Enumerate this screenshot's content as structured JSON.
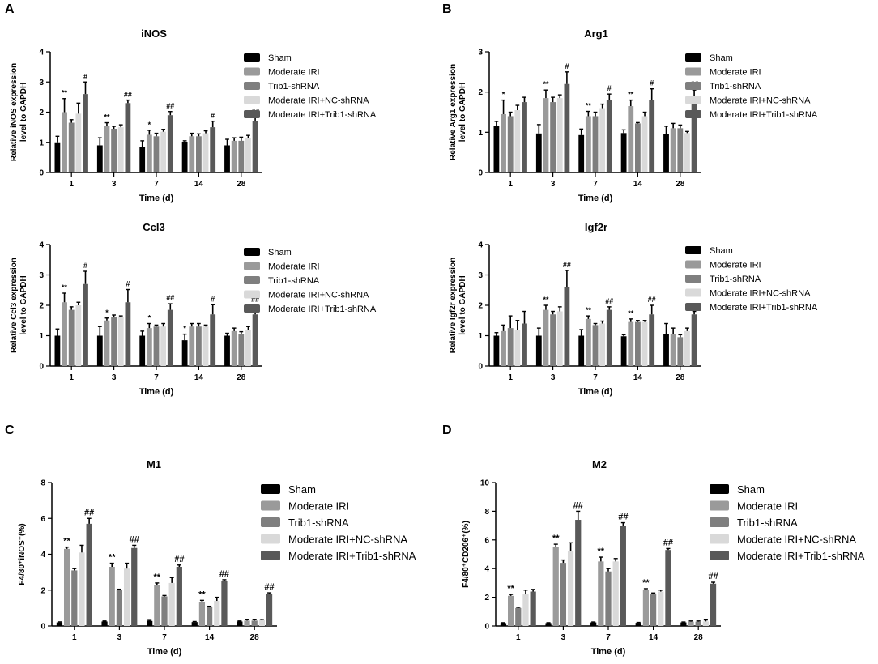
{
  "colors": {
    "sham": "#000000",
    "moderate_iri": "#9a9a9a",
    "trib1_shrna": "#7f7f7f",
    "moderate_iri_nc": "#d9d9d9",
    "moderate_iri_trib1": "#595959",
    "error": "#000000"
  },
  "legend_labels": [
    "Sham",
    "Moderate IRI",
    "Trib1-shRNA",
    "Moderate IRI+NC-shRNA",
    "Moderate IRI+Trib1-shRNA"
  ],
  "chart_data": [
    {
      "panel_label": "A",
      "type": "bar",
      "title": "iNOS",
      "ylabel": "Relative iNOS expression level to GAPDH",
      "xlabel": "Time (d)",
      "ylim": [
        0,
        4
      ],
      "yticks": [
        0,
        1,
        2,
        3,
        4
      ],
      "categories": [
        "1",
        "3",
        "7",
        "14",
        "28"
      ],
      "series": [
        {
          "name": "Sham",
          "values": [
            1.0,
            0.9,
            0.85,
            1.02,
            0.9
          ],
          "errors": [
            0.2,
            0.25,
            0.2,
            0.03,
            0.2
          ]
        },
        {
          "name": "Moderate IRI",
          "values": [
            2.0,
            1.55,
            1.25,
            1.2,
            1.05
          ],
          "errors": [
            0.45,
            0.1,
            0.15,
            0.1,
            0.1
          ]
        },
        {
          "name": "Trib1-shRNA",
          "values": [
            1.65,
            1.45,
            1.2,
            1.2,
            1.05
          ],
          "errors": [
            0.1,
            0.08,
            0.1,
            0.08,
            0.12
          ]
        },
        {
          "name": "Moderate IRI+NC-shRNA",
          "values": [
            1.95,
            1.5,
            1.35,
            1.3,
            1.15
          ],
          "errors": [
            0.35,
            0.08,
            0.08,
            0.08,
            0.08
          ]
        },
        {
          "name": "Moderate IRI+Trib1-shRNA",
          "values": [
            2.6,
            2.3,
            1.9,
            1.5,
            1.7
          ],
          "errors": [
            0.4,
            0.1,
            0.12,
            0.2,
            0.12
          ]
        }
      ],
      "annotations": [
        {
          "category": "1",
          "series": 1,
          "text": "**"
        },
        {
          "category": "1",
          "series": 4,
          "text": "#"
        },
        {
          "category": "3",
          "series": 1,
          "text": "**"
        },
        {
          "category": "3",
          "series": 4,
          "text": "##"
        },
        {
          "category": "7",
          "series": 1,
          "text": "*"
        },
        {
          "category": "7",
          "series": 4,
          "text": "##"
        },
        {
          "category": "14",
          "series": 4,
          "text": "#"
        },
        {
          "category": "28",
          "series": 4,
          "text": "##"
        }
      ],
      "legend_position": "right"
    },
    {
      "panel_label": "B",
      "type": "bar",
      "title": "Arg1",
      "ylabel": "Relative Arg1 expression level to GAPDH",
      "xlabel": "Time (d)",
      "ylim": [
        0,
        3
      ],
      "yticks": [
        0,
        1,
        2,
        3
      ],
      "categories": [
        "1",
        "3",
        "7",
        "14",
        "28"
      ],
      "series": [
        {
          "name": "Sham",
          "values": [
            1.15,
            0.97,
            0.93,
            0.98,
            0.95
          ],
          "errors": [
            0.12,
            0.22,
            0.15,
            0.08,
            0.2
          ]
        },
        {
          "name": "Moderate IRI",
          "values": [
            1.45,
            1.85,
            1.4,
            1.65,
            1.1
          ],
          "errors": [
            0.35,
            0.2,
            0.12,
            0.15,
            0.12
          ]
        },
        {
          "name": "Trib1-shRNA",
          "values": [
            1.4,
            1.75,
            1.4,
            1.22,
            1.1
          ],
          "errors": [
            0.1,
            0.12,
            0.1,
            0.02,
            0.08
          ]
        },
        {
          "name": "Moderate IRI+NC-shRNA",
          "values": [
            1.55,
            1.85,
            1.6,
            1.4,
            0.98
          ],
          "errors": [
            0.12,
            0.08,
            0.1,
            0.1,
            0.04
          ]
        },
        {
          "name": "Moderate IRI+Trib1-shRNA",
          "values": [
            1.75,
            2.2,
            1.8,
            1.8,
            1.7
          ],
          "errors": [
            0.12,
            0.3,
            0.15,
            0.28,
            0.35
          ]
        }
      ],
      "annotations": [
        {
          "category": "1",
          "series": 1,
          "text": "*"
        },
        {
          "category": "3",
          "series": 1,
          "text": "**"
        },
        {
          "category": "3",
          "series": 4,
          "text": "#"
        },
        {
          "category": "7",
          "series": 1,
          "text": "**"
        },
        {
          "category": "7",
          "series": 4,
          "text": "#"
        },
        {
          "category": "14",
          "series": 1,
          "text": "**"
        },
        {
          "category": "14",
          "series": 4,
          "text": "#"
        },
        {
          "category": "28",
          "series": 4,
          "text": "##"
        }
      ],
      "legend_position": "right"
    },
    {
      "panel_label": "",
      "type": "bar",
      "title": "Ccl3",
      "ylabel": "Relative Ccl3 expression level to GAPDH",
      "xlabel": "Time (d)",
      "ylim": [
        0,
        4
      ],
      "yticks": [
        0,
        1,
        2,
        3,
        4
      ],
      "categories": [
        "1",
        "3",
        "7",
        "14",
        "28"
      ],
      "series": [
        {
          "name": "Sham",
          "values": [
            1.0,
            1.0,
            1.0,
            0.85,
            1.0
          ],
          "errors": [
            0.22,
            0.3,
            0.15,
            0.2,
            0.08
          ]
        },
        {
          "name": "Moderate IRI",
          "values": [
            2.1,
            1.5,
            1.25,
            1.3,
            1.15
          ],
          "errors": [
            0.3,
            0.08,
            0.15,
            0.1,
            0.1
          ]
        },
        {
          "name": "Trib1-shRNA",
          "values": [
            1.85,
            1.6,
            1.3,
            1.3,
            1.05
          ],
          "errors": [
            0.1,
            0.08,
            0.05,
            0.1,
            0.08
          ]
        },
        {
          "name": "Moderate IRI+NC-shRNA",
          "values": [
            2.0,
            1.6,
            1.3,
            1.3,
            1.2
          ],
          "errors": [
            0.1,
            0.05,
            0.1,
            0.05,
            0.1
          ]
        },
        {
          "name": "Moderate IRI+Trib1-shRNA",
          "values": [
            2.7,
            2.1,
            1.85,
            1.7,
            1.7
          ],
          "errors": [
            0.42,
            0.42,
            0.2,
            0.32,
            0.3
          ]
        }
      ],
      "annotations": [
        {
          "category": "1",
          "series": 1,
          "text": "**"
        },
        {
          "category": "1",
          "series": 4,
          "text": "#"
        },
        {
          "category": "3",
          "series": 1,
          "text": "*"
        },
        {
          "category": "3",
          "series": 4,
          "text": "#"
        },
        {
          "category": "7",
          "series": 1,
          "text": "*"
        },
        {
          "category": "7",
          "series": 4,
          "text": "##"
        },
        {
          "category": "14",
          "series": 0,
          "text": "*"
        },
        {
          "category": "14",
          "series": 4,
          "text": "#"
        },
        {
          "category": "28",
          "series": 4,
          "text": "##"
        }
      ],
      "legend_position": "right"
    },
    {
      "panel_label": "",
      "type": "bar",
      "title": "Igf2r",
      "ylabel": "Relative Igf2r expression level to GAPDH",
      "xlabel": "Time (d)",
      "ylim": [
        0,
        4
      ],
      "yticks": [
        0,
        1,
        2,
        3,
        4
      ],
      "categories": [
        "1",
        "3",
        "7",
        "14",
        "28"
      ],
      "series": [
        {
          "name": "Sham",
          "values": [
            1.0,
            1.0,
            1.0,
            0.98,
            1.05
          ],
          "errors": [
            0.1,
            0.25,
            0.2,
            0.05,
            0.35
          ]
        },
        {
          "name": "Moderate IRI",
          "values": [
            1.15,
            1.85,
            1.55,
            1.45,
            1.05
          ],
          "errors": [
            0.2,
            0.15,
            0.1,
            0.1,
            0.2
          ]
        },
        {
          "name": "Trib1-shRNA",
          "values": [
            1.25,
            1.7,
            1.35,
            1.45,
            0.95
          ],
          "errors": [
            0.4,
            0.1,
            0.05,
            0.05,
            0.08
          ]
        },
        {
          "name": "Moderate IRI+NC-shRNA",
          "values": [
            1.2,
            1.8,
            1.4,
            1.45,
            1.15
          ],
          "errors": [
            0.3,
            0.15,
            0.08,
            0.05,
            0.1
          ]
        },
        {
          "name": "Moderate IRI+Trib1-shRNA",
          "values": [
            1.4,
            2.6,
            1.85,
            1.7,
            1.7
          ],
          "errors": [
            0.4,
            0.55,
            0.1,
            0.3,
            0.1
          ]
        }
      ],
      "annotations": [
        {
          "category": "3",
          "series": 1,
          "text": "**"
        },
        {
          "category": "3",
          "series": 4,
          "text": "##"
        },
        {
          "category": "7",
          "series": 1,
          "text": "**"
        },
        {
          "category": "7",
          "series": 4,
          "text": "##"
        },
        {
          "category": "14",
          "series": 1,
          "text": "**"
        },
        {
          "category": "14",
          "series": 4,
          "text": "##"
        },
        {
          "category": "28",
          "series": 4,
          "text": "##"
        }
      ],
      "legend_position": "right"
    },
    {
      "panel_label": "C",
      "type": "bar",
      "title": "M1",
      "ylabel": "F4/80⁺iNOS⁺(%)",
      "xlabel": "Time (d)",
      "ylim": [
        0,
        8
      ],
      "yticks": [
        0,
        2,
        4,
        6,
        8
      ],
      "categories": [
        "1",
        "3",
        "7",
        "14",
        "28"
      ],
      "series": [
        {
          "name": "Sham",
          "values": [
            0.2,
            0.25,
            0.28,
            0.22,
            0.25
          ],
          "errors": [
            0.03,
            0.03,
            0.03,
            0.03,
            0.03
          ]
        },
        {
          "name": "Moderate IRI",
          "values": [
            4.3,
            3.3,
            2.3,
            1.35,
            0.3
          ],
          "errors": [
            0.1,
            0.2,
            0.1,
            0.08,
            0.05
          ]
        },
        {
          "name": "Trib1-shRNA",
          "values": [
            3.1,
            2.0,
            1.65,
            1.05,
            0.3
          ],
          "errors": [
            0.1,
            0.05,
            0.05,
            0.05,
            0.05
          ]
        },
        {
          "name": "Moderate IRI+NC-shRNA",
          "values": [
            4.1,
            3.2,
            2.4,
            1.4,
            0.32
          ],
          "errors": [
            0.4,
            0.3,
            0.3,
            0.2,
            0.05
          ]
        },
        {
          "name": "Moderate IRI+Trib1-shRNA",
          "values": [
            5.7,
            4.35,
            3.3,
            2.5,
            1.8
          ],
          "errors": [
            0.3,
            0.15,
            0.1,
            0.08,
            0.05
          ]
        }
      ],
      "annotations": [
        {
          "category": "1",
          "series": 1,
          "text": "**"
        },
        {
          "category": "1",
          "series": 4,
          "text": "##"
        },
        {
          "category": "3",
          "series": 1,
          "text": "**"
        },
        {
          "category": "3",
          "series": 4,
          "text": "##"
        },
        {
          "category": "7",
          "series": 1,
          "text": "**"
        },
        {
          "category": "7",
          "series": 4,
          "text": "##"
        },
        {
          "category": "14",
          "series": 1,
          "text": "**"
        },
        {
          "category": "14",
          "series": 4,
          "text": "##"
        },
        {
          "category": "28",
          "series": 4,
          "text": "##"
        }
      ],
      "legend_position": "right"
    },
    {
      "panel_label": "D",
      "type": "bar",
      "title": "M2",
      "ylabel": "F4/80⁺CD206⁺(%)",
      "xlabel": "Time (d)",
      "ylim": [
        0,
        10
      ],
      "yticks": [
        0,
        2,
        4,
        6,
        8,
        10
      ],
      "categories": [
        "1",
        "3",
        "7",
        "14",
        "28"
      ],
      "series": [
        {
          "name": "Sham",
          "values": [
            0.2,
            0.2,
            0.25,
            0.22,
            0.25
          ],
          "errors": [
            0.03,
            0.03,
            0.03,
            0.03,
            0.03
          ]
        },
        {
          "name": "Moderate IRI",
          "values": [
            2.1,
            5.5,
            4.5,
            2.5,
            0.3
          ],
          "errors": [
            0.1,
            0.2,
            0.3,
            0.1,
            0.05
          ]
        },
        {
          "name": "Trib1-shRNA",
          "values": [
            1.25,
            4.4,
            3.8,
            2.2,
            0.3
          ],
          "errors": [
            0.05,
            0.2,
            0.2,
            0.1,
            0.05
          ]
        },
        {
          "name": "Moderate IRI+NC-shRNA",
          "values": [
            2.2,
            5.2,
            4.5,
            2.4,
            0.32
          ],
          "errors": [
            0.3,
            0.6,
            0.2,
            0.1,
            0.1
          ]
        },
        {
          "name": "Moderate IRI+Trib1-shRNA",
          "values": [
            2.4,
            7.4,
            7.0,
            5.3,
            2.95
          ],
          "errors": [
            0.15,
            0.6,
            0.2,
            0.1,
            0.1
          ]
        }
      ],
      "annotations": [
        {
          "category": "1",
          "series": 1,
          "text": "**"
        },
        {
          "category": "3",
          "series": 1,
          "text": "**"
        },
        {
          "category": "3",
          "series": 4,
          "text": "##"
        },
        {
          "category": "7",
          "series": 1,
          "text": "**"
        },
        {
          "category": "7",
          "series": 4,
          "text": "##"
        },
        {
          "category": "14",
          "series": 1,
          "text": "**"
        },
        {
          "category": "14",
          "series": 4,
          "text": "##"
        },
        {
          "category": "28",
          "series": 4,
          "text": "##"
        }
      ],
      "legend_position": "right"
    }
  ]
}
